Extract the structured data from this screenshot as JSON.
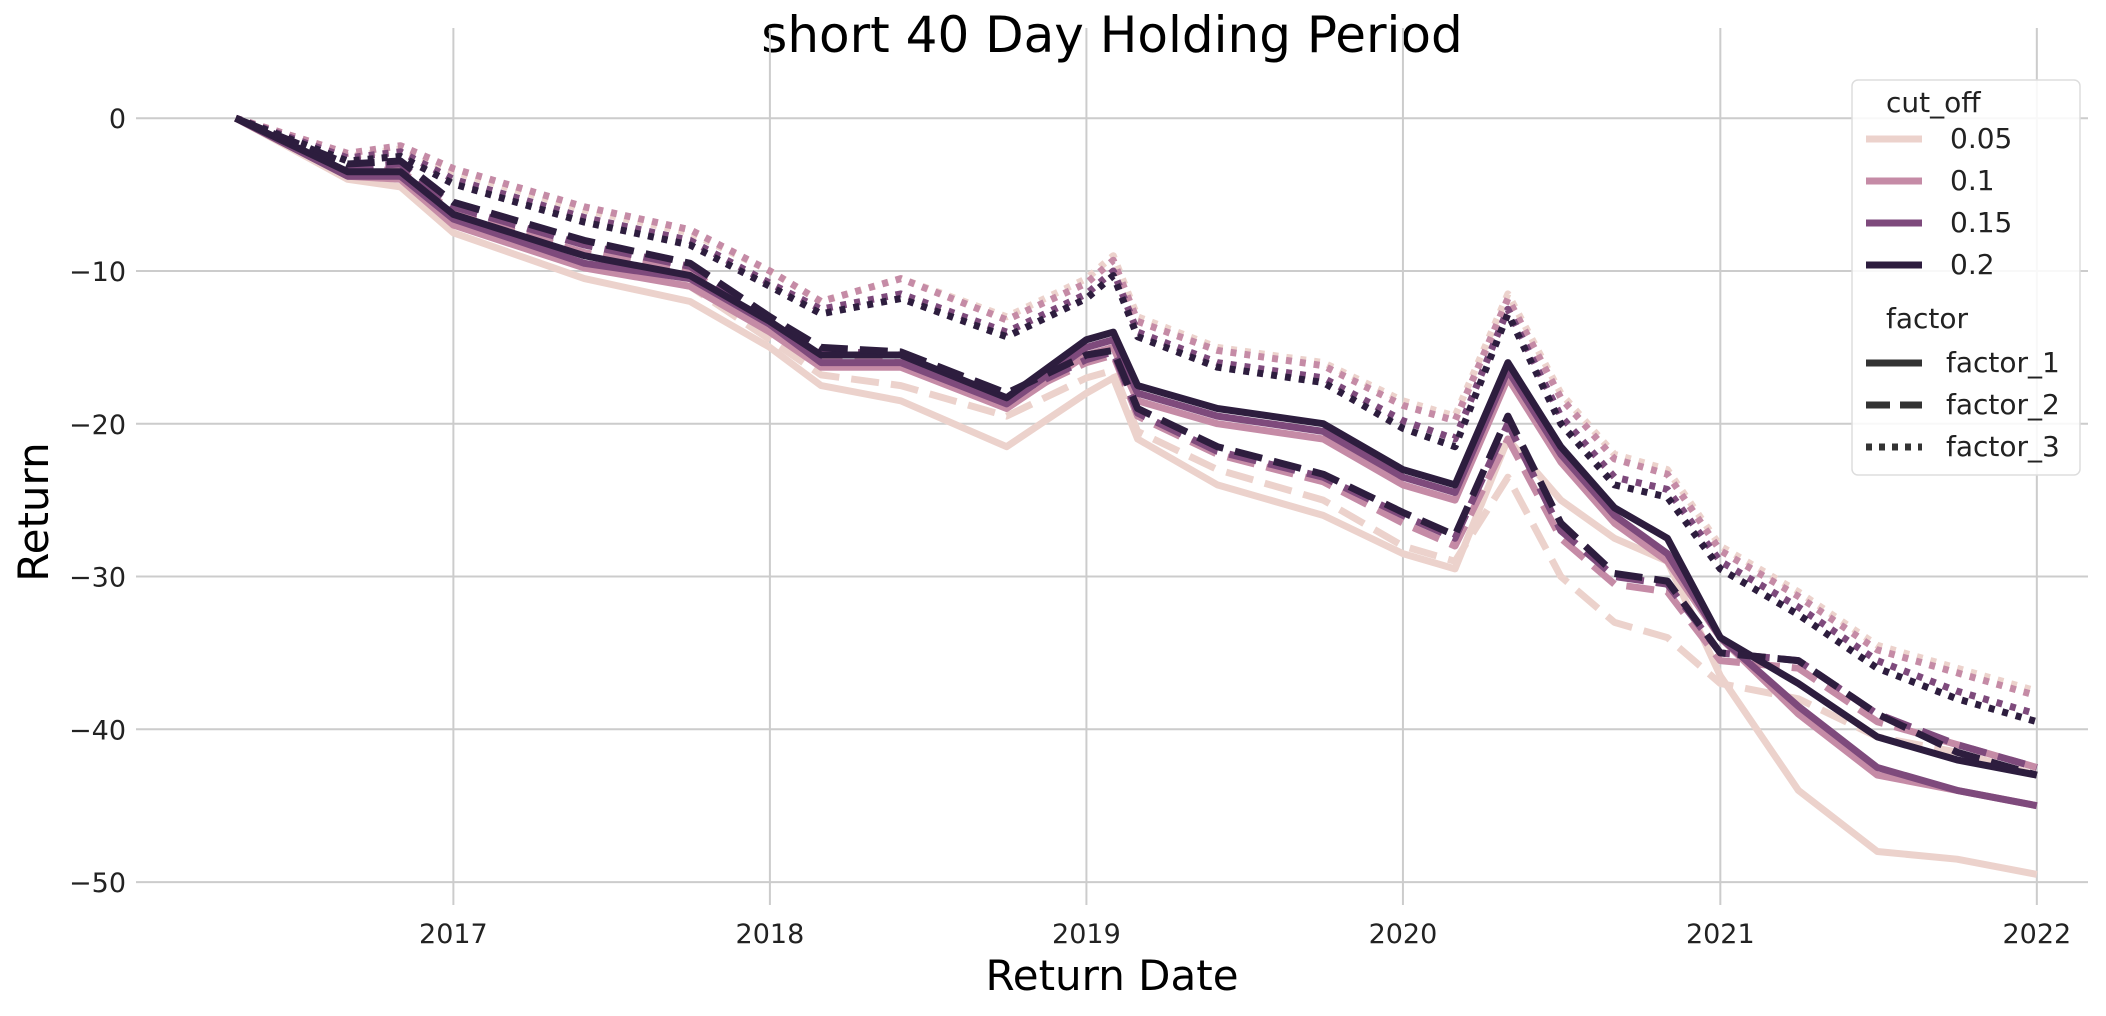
{
  "chart_data": {
    "type": "line",
    "title": "short 40 Day Holding Period",
    "xlabel": "Return Date",
    "ylabel": "Return",
    "x_ticks": [
      "2017",
      "2018",
      "2019",
      "2020",
      "2021",
      "2022"
    ],
    "y_ticks": [
      0,
      -10,
      -20,
      -30,
      -40,
      -50
    ],
    "xlim": [
      "2016-01-01",
      "2022-03-01"
    ],
    "ylim": [
      -51.5,
      2.5
    ],
    "grid": true,
    "legend_placement": "top-right",
    "legend": {
      "hue_title": "cut_off",
      "hue_entries": [
        {
          "label": "0.05",
          "color": "#ecd2cc"
        },
        {
          "label": "0.1",
          "color": "#c58ba6"
        },
        {
          "label": "0.15",
          "color": "#7e4a7c"
        },
        {
          "label": "0.2",
          "color": "#2d1d3e"
        }
      ],
      "style_title": "factor",
      "style_entries": [
        {
          "label": "factor_1",
          "dash": "solid"
        },
        {
          "label": "factor_2",
          "dash": "dashed"
        },
        {
          "label": "factor_3",
          "dash": "dotted"
        }
      ]
    },
    "series": [
      {
        "cut_off": "0.05",
        "factor": "factor_1",
        "x": [
          "2016-04-25",
          "2016-09-01",
          "2016-11-01",
          "2017-01-01",
          "2017-06-01",
          "2017-10-01",
          "2018-01-01",
          "2018-03-01",
          "2018-06-01",
          "2018-10-01",
          "2019-01-01",
          "2019-02-01",
          "2019-03-01",
          "2019-06-01",
          "2019-10-01",
          "2020-01-01",
          "2020-03-01",
          "2020-05-01",
          "2020-07-01",
          "2020-09-01",
          "2020-11-01",
          "2021-01-01",
          "2021-04-01",
          "2021-07-01",
          "2021-10-01",
          "2022-01-01"
        ],
        "y": [
          0,
          -4,
          -4.5,
          -7.5,
          -10.5,
          -12,
          -15,
          -17.5,
          -18.5,
          -21.5,
          -18,
          -17,
          -21,
          -24,
          -26,
          -28.5,
          -29.5,
          -21,
          -25,
          -27.5,
          -29,
          -36.5,
          -44,
          -48,
          -48.5,
          -49.5
        ]
      },
      {
        "cut_off": "0.1",
        "factor": "factor_1",
        "x": [
          "2016-04-25",
          "2016-09-01",
          "2016-11-01",
          "2017-01-01",
          "2017-06-01",
          "2017-10-01",
          "2018-01-01",
          "2018-03-01",
          "2018-06-01",
          "2018-10-01",
          "2019-01-01",
          "2019-02-01",
          "2019-03-01",
          "2019-06-01",
          "2019-10-01",
          "2020-01-01",
          "2020-03-01",
          "2020-05-01",
          "2020-07-01",
          "2020-09-01",
          "2020-11-01",
          "2021-01-01",
          "2021-04-01",
          "2021-07-01",
          "2021-10-01",
          "2022-01-01"
        ],
        "y": [
          0,
          -3.8,
          -4.0,
          -7,
          -9.8,
          -11,
          -14,
          -16.3,
          -16.3,
          -19,
          -15.5,
          -15,
          -18.5,
          -20,
          -21,
          -24,
          -25,
          -17,
          -22.5,
          -26.5,
          -29,
          -34,
          -39,
          -43,
          -44,
          -45
        ]
      },
      {
        "cut_off": "0.15",
        "factor": "factor_1",
        "x": [
          "2016-04-25",
          "2016-09-01",
          "2016-11-01",
          "2017-01-01",
          "2017-06-01",
          "2017-10-01",
          "2018-01-01",
          "2018-03-01",
          "2018-06-01",
          "2018-10-01",
          "2019-01-01",
          "2019-02-01",
          "2019-03-01",
          "2019-06-01",
          "2019-10-01",
          "2020-01-01",
          "2020-03-01",
          "2020-05-01",
          "2020-07-01",
          "2020-09-01",
          "2020-11-01",
          "2021-01-01",
          "2021-04-01",
          "2021-07-01",
          "2021-10-01",
          "2022-01-01"
        ],
        "y": [
          0,
          -3.8,
          -3.8,
          -6.6,
          -9.5,
          -10.5,
          -13.5,
          -16,
          -16,
          -18.7,
          -15,
          -14.5,
          -18,
          -19.5,
          -20.5,
          -23.5,
          -24.5,
          -16.5,
          -22,
          -26,
          -28.5,
          -34,
          -38.5,
          -42.5,
          -44,
          -45
        ]
      },
      {
        "cut_off": "0.2",
        "factor": "factor_1",
        "x": [
          "2016-04-25",
          "2016-09-01",
          "2016-11-01",
          "2017-01-01",
          "2017-06-01",
          "2017-10-01",
          "2018-01-01",
          "2018-03-01",
          "2018-06-01",
          "2018-10-01",
          "2019-01-01",
          "2019-02-01",
          "2019-03-01",
          "2019-06-01",
          "2019-10-01",
          "2020-01-01",
          "2020-03-01",
          "2020-05-01",
          "2020-07-01",
          "2020-09-01",
          "2020-11-01",
          "2021-01-01",
          "2021-04-01",
          "2021-07-01",
          "2021-10-01",
          "2022-01-01"
        ],
        "y": [
          0,
          -3.5,
          -3.5,
          -6.3,
          -9,
          -10.3,
          -13.3,
          -15.5,
          -15.5,
          -18.3,
          -14.5,
          -14,
          -17.5,
          -19,
          -20,
          -23,
          -24,
          -16,
          -21.5,
          -25.5,
          -27.5,
          -34,
          -37,
          -40.5,
          -42,
          -43
        ]
      },
      {
        "cut_off": "0.05",
        "factor": "factor_2",
        "x": [
          "2016-04-25",
          "2016-09-01",
          "2016-11-01",
          "2017-01-01",
          "2017-06-01",
          "2017-10-01",
          "2018-01-01",
          "2018-03-01",
          "2018-06-01",
          "2018-10-01",
          "2019-01-01",
          "2019-02-01",
          "2019-03-01",
          "2019-06-01",
          "2019-10-01",
          "2020-01-01",
          "2020-03-01",
          "2020-05-01",
          "2020-07-01",
          "2020-09-01",
          "2020-11-01",
          "2021-01-01",
          "2021-04-01",
          "2021-07-01",
          "2021-10-01",
          "2022-01-01"
        ],
        "y": [
          0,
          -3.6,
          -4,
          -6.8,
          -9.5,
          -11,
          -14.5,
          -16.8,
          -17.5,
          -19.5,
          -17,
          -16.5,
          -20.5,
          -23,
          -25,
          -28,
          -29,
          -23.5,
          -30,
          -33,
          -34,
          -37,
          -38,
          -40.5,
          -41.5,
          -43
        ]
      },
      {
        "cut_off": "0.1",
        "factor": "factor_2",
        "x": [
          "2016-04-25",
          "2016-09-01",
          "2016-11-01",
          "2017-01-01",
          "2017-06-01",
          "2017-10-01",
          "2018-01-01",
          "2018-03-01",
          "2018-06-01",
          "2018-10-01",
          "2019-01-01",
          "2019-02-01",
          "2019-03-01",
          "2019-06-01",
          "2019-10-01",
          "2020-01-01",
          "2020-03-01",
          "2020-05-01",
          "2020-07-01",
          "2020-09-01",
          "2020-11-01",
          "2021-01-01",
          "2021-04-01",
          "2021-07-01",
          "2021-10-01",
          "2022-01-01"
        ],
        "y": [
          0,
          -3.4,
          -3.4,
          -6.2,
          -8.8,
          -10,
          -13.5,
          -15.8,
          -16,
          -18.5,
          -16,
          -15.5,
          -19.5,
          -22,
          -23.8,
          -26.5,
          -28,
          -21,
          -27.5,
          -30.5,
          -31,
          -35.5,
          -36,
          -39.5,
          -41,
          -42.5
        ]
      },
      {
        "cut_off": "0.15",
        "factor": "factor_2",
        "x": [
          "2016-04-25",
          "2016-09-01",
          "2016-11-01",
          "2017-01-01",
          "2017-06-01",
          "2017-10-01",
          "2018-01-01",
          "2018-03-01",
          "2018-06-01",
          "2018-10-01",
          "2019-01-01",
          "2019-02-01",
          "2019-03-01",
          "2019-06-01",
          "2019-10-01",
          "2020-01-01",
          "2020-03-01",
          "2020-05-01",
          "2020-07-01",
          "2020-09-01",
          "2020-11-01",
          "2021-01-01",
          "2021-04-01",
          "2021-07-01",
          "2021-10-01",
          "2022-01-01"
        ],
        "y": [
          0,
          -3.2,
          -3,
          -5.8,
          -8.3,
          -9.7,
          -13.2,
          -15.2,
          -15.5,
          -18.3,
          -15.8,
          -15.3,
          -19.3,
          -21.8,
          -23.5,
          -26,
          -27.5,
          -20,
          -27,
          -30,
          -30.5,
          -35,
          -35.5,
          -39,
          -41,
          -42.5
        ]
      },
      {
        "cut_off": "0.2",
        "factor": "factor_2",
        "x": [
          "2016-04-25",
          "2016-09-01",
          "2016-11-01",
          "2017-01-01",
          "2017-06-01",
          "2017-10-01",
          "2018-01-01",
          "2018-03-01",
          "2018-06-01",
          "2018-10-01",
          "2019-01-01",
          "2019-02-01",
          "2019-03-01",
          "2019-06-01",
          "2019-10-01",
          "2020-01-01",
          "2020-03-01",
          "2020-05-01",
          "2020-07-01",
          "2020-09-01",
          "2020-11-01",
          "2021-01-01",
          "2021-04-01",
          "2021-07-01",
          "2021-10-01",
          "2022-01-01"
        ],
        "y": [
          0,
          -3,
          -2.8,
          -5.5,
          -8,
          -9.5,
          -13,
          -15,
          -15.3,
          -18,
          -15.5,
          -15.2,
          -19,
          -21.5,
          -23.3,
          -25.8,
          -27.3,
          -19.5,
          -26.5,
          -29.8,
          -30.3,
          -35,
          -35.5,
          -39,
          -41.5,
          -43
        ]
      },
      {
        "cut_off": "0.05",
        "factor": "factor_3",
        "x": [
          "2016-04-25",
          "2016-09-01",
          "2016-11-01",
          "2017-01-01",
          "2017-06-01",
          "2017-10-01",
          "2018-01-01",
          "2018-03-01",
          "2018-06-01",
          "2018-10-01",
          "2019-01-01",
          "2019-02-01",
          "2019-03-01",
          "2019-06-01",
          "2019-10-01",
          "2020-01-01",
          "2020-03-01",
          "2020-05-01",
          "2020-07-01",
          "2020-09-01",
          "2020-11-01",
          "2021-01-01",
          "2021-04-01",
          "2021-07-01",
          "2021-10-01",
          "2022-01-01"
        ],
        "y": [
          0,
          -2.5,
          -2,
          -3.5,
          -6,
          -7.5,
          -10,
          -12,
          -10.5,
          -13,
          -10.5,
          -9,
          -13,
          -15,
          -16,
          -18.5,
          -19.5,
          -11.5,
          -18,
          -22,
          -23,
          -28,
          -31,
          -34.5,
          -36,
          -37.5
        ]
      },
      {
        "cut_off": "0.1",
        "factor": "factor_3",
        "x": [
          "2016-04-25",
          "2016-09-01",
          "2016-11-01",
          "2017-01-01",
          "2017-06-01",
          "2017-10-01",
          "2018-01-01",
          "2018-03-01",
          "2018-06-01",
          "2018-10-01",
          "2019-01-01",
          "2019-02-01",
          "2019-03-01",
          "2019-06-01",
          "2019-10-01",
          "2020-01-01",
          "2020-03-01",
          "2020-05-01",
          "2020-07-01",
          "2020-09-01",
          "2020-11-01",
          "2021-01-01",
          "2021-04-01",
          "2021-07-01",
          "2021-10-01",
          "2022-01-01"
        ],
        "y": [
          0,
          -2.3,
          -1.8,
          -3.3,
          -5.8,
          -7.3,
          -10,
          -12,
          -10.5,
          -13.2,
          -10.8,
          -9.3,
          -13.3,
          -15.2,
          -16.2,
          -18.8,
          -19.8,
          -11.8,
          -18.3,
          -22.3,
          -23.3,
          -28.3,
          -31.3,
          -34.8,
          -36.3,
          -37.8
        ]
      },
      {
        "cut_off": "0.15",
        "factor": "factor_3",
        "x": [
          "2016-04-25",
          "2016-09-01",
          "2016-11-01",
          "2017-01-01",
          "2017-06-01",
          "2017-10-01",
          "2018-01-01",
          "2018-03-01",
          "2018-06-01",
          "2018-10-01",
          "2019-01-01",
          "2019-02-01",
          "2019-03-01",
          "2019-06-01",
          "2019-10-01",
          "2020-01-01",
          "2020-03-01",
          "2020-05-01",
          "2020-07-01",
          "2020-09-01",
          "2020-11-01",
          "2021-01-01",
          "2021-04-01",
          "2021-07-01",
          "2021-10-01",
          "2022-01-01"
        ],
        "y": [
          0,
          -2.6,
          -2.2,
          -4,
          -6.5,
          -8,
          -10.8,
          -12.5,
          -11.5,
          -14,
          -11.5,
          -10,
          -14,
          -16,
          -17,
          -19.8,
          -21,
          -12.5,
          -19.5,
          -23.5,
          -24.3,
          -29,
          -32,
          -35.5,
          -37.5,
          -39
        ]
      },
      {
        "cut_off": "0.2",
        "factor": "factor_3",
        "x": [
          "2016-04-25",
          "2016-09-01",
          "2016-11-01",
          "2017-01-01",
          "2017-06-01",
          "2017-10-01",
          "2018-01-01",
          "2018-03-01",
          "2018-06-01",
          "2018-10-01",
          "2019-01-01",
          "2019-02-01",
          "2019-03-01",
          "2019-06-01",
          "2019-10-01",
          "2020-01-01",
          "2020-03-01",
          "2020-05-01",
          "2020-07-01",
          "2020-09-01",
          "2020-11-01",
          "2021-01-01",
          "2021-04-01",
          "2021-07-01",
          "2021-10-01",
          "2022-01-01"
        ],
        "y": [
          0,
          -2.8,
          -2.5,
          -4.3,
          -6.8,
          -8.3,
          -11,
          -12.8,
          -11.8,
          -14.3,
          -11.8,
          -10.3,
          -14.3,
          -16.3,
          -17.3,
          -20.3,
          -21.5,
          -12.8,
          -20,
          -24,
          -24.8,
          -29.5,
          -32.5,
          -36,
          -38,
          -39.5
        ]
      }
    ]
  }
}
